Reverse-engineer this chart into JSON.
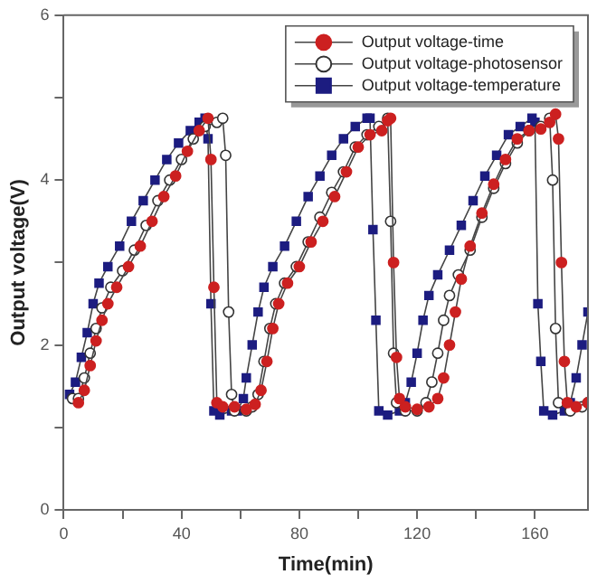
{
  "chart_data": {
    "type": "line",
    "xlabel": "Time(min)",
    "ylabel": "Output voltage(V)",
    "xlim": [
      0,
      178
    ],
    "xticks": [
      0,
      {
        "value": 20,
        "label": null
      },
      40,
      {
        "value": 60,
        "label": null
      },
      80,
      {
        "value": 100,
        "label": null
      },
      120,
      {
        "value": 140,
        "label": null
      },
      160
    ],
    "ylim": [
      0,
      6
    ],
    "yticks": [
      0,
      {
        "value": 1,
        "label": null
      },
      2,
      {
        "value": 3,
        "label": null
      },
      4,
      {
        "value": 5,
        "label": null
      },
      6
    ],
    "grid": false,
    "legend": "top right",
    "line_style": "solid",
    "series": [
      {
        "name": "Output voltage-time",
        "color": "#cc2020",
        "marker": "circle",
        "x": [
          5,
          7,
          9,
          11,
          13,
          15,
          18,
          22,
          26,
          30,
          34,
          38,
          42,
          46,
          49,
          50,
          51,
          52,
          54,
          58,
          62,
          65,
          67,
          69,
          71,
          73,
          76,
          80,
          84,
          88,
          92,
          96,
          100,
          104,
          108,
          110,
          111,
          112,
          113,
          114,
          116,
          120,
          124,
          127,
          129,
          131,
          133,
          135,
          138,
          142,
          146,
          150,
          154,
          158,
          162,
          165,
          167,
          168,
          169,
          170,
          171,
          174,
          178
        ],
        "values": [
          1.3,
          1.45,
          1.75,
          2.05,
          2.3,
          2.5,
          2.7,
          2.95,
          3.2,
          3.5,
          3.8,
          4.05,
          4.35,
          4.6,
          4.75,
          4.25,
          2.7,
          1.3,
          1.25,
          1.25,
          1.22,
          1.28,
          1.45,
          1.8,
          2.2,
          2.5,
          2.75,
          2.95,
          3.25,
          3.5,
          3.8,
          4.1,
          4.4,
          4.55,
          4.6,
          4.72,
          4.75,
          3.0,
          1.85,
          1.35,
          1.25,
          1.22,
          1.25,
          1.35,
          1.6,
          2.0,
          2.4,
          2.8,
          3.2,
          3.6,
          3.95,
          4.25,
          4.5,
          4.6,
          4.62,
          4.7,
          4.8,
          4.5,
          3.0,
          1.8,
          1.3,
          1.25,
          1.3
        ]
      },
      {
        "name": "Output voltage-photosensor",
        "color": "#ffffff",
        "marker": "circle",
        "x": [
          3,
          5,
          7,
          9,
          11,
          13,
          16,
          20,
          24,
          28,
          32,
          36,
          40,
          44,
          48,
          52,
          54,
          55,
          56,
          57,
          58,
          62,
          64,
          66,
          68,
          70,
          72,
          75,
          79,
          83,
          87,
          91,
          95,
          99,
          103,
          107,
          110,
          111,
          112,
          113,
          116,
          120,
          123,
          125,
          127,
          129,
          131,
          134,
          138,
          142,
          146,
          150,
          154,
          158,
          162,
          165,
          166,
          167,
          168,
          172,
          176,
          178
        ],
        "values": [
          1.35,
          1.35,
          1.6,
          1.9,
          2.2,
          2.45,
          2.7,
          2.9,
          3.15,
          3.45,
          3.75,
          4.0,
          4.25,
          4.5,
          4.65,
          4.7,
          4.75,
          4.3,
          2.4,
          1.4,
          1.2,
          1.2,
          1.25,
          1.4,
          1.8,
          2.2,
          2.5,
          2.75,
          2.95,
          3.25,
          3.55,
          3.85,
          4.1,
          4.4,
          4.55,
          4.65,
          4.75,
          3.5,
          1.9,
          1.3,
          1.2,
          1.2,
          1.3,
          1.55,
          1.9,
          2.3,
          2.6,
          2.85,
          3.15,
          3.55,
          3.9,
          4.2,
          4.45,
          4.6,
          4.65,
          4.75,
          4.0,
          2.2,
          1.3,
          1.2,
          1.25,
          1.3
        ]
      },
      {
        "name": "Output voltage-temperature",
        "color": "#1c1c80",
        "marker": "square",
        "x": [
          2,
          4,
          6,
          8,
          10,
          12,
          15,
          19,
          23,
          27,
          31,
          35,
          39,
          43,
          46,
          48,
          49,
          50,
          51,
          53,
          57,
          59,
          61,
          62,
          64,
          66,
          68,
          71,
          75,
          79,
          83,
          87,
          91,
          95,
          99,
          103,
          104,
          105,
          106,
          107,
          110,
          114,
          116,
          118,
          120,
          122,
          124,
          127,
          131,
          135,
          139,
          143,
          147,
          151,
          155,
          159,
          160,
          161,
          162,
          163,
          166,
          170,
          172,
          174,
          176,
          178
        ],
        "values": [
          1.4,
          1.55,
          1.85,
          2.15,
          2.5,
          2.75,
          2.95,
          3.2,
          3.5,
          3.75,
          4.0,
          4.25,
          4.45,
          4.6,
          4.7,
          4.75,
          4.5,
          2.5,
          1.2,
          1.15,
          1.2,
          1.2,
          1.35,
          1.6,
          2.0,
          2.4,
          2.7,
          2.95,
          3.2,
          3.5,
          3.8,
          4.05,
          4.3,
          4.5,
          4.65,
          4.75,
          4.75,
          3.4,
          2.3,
          1.2,
          1.15,
          1.2,
          1.3,
          1.55,
          1.9,
          2.3,
          2.6,
          2.85,
          3.15,
          3.45,
          3.75,
          4.05,
          4.3,
          4.55,
          4.65,
          4.75,
          4.7,
          2.5,
          1.8,
          1.2,
          1.15,
          1.2,
          1.3,
          1.6,
          2.0,
          2.4
        ]
      }
    ]
  }
}
